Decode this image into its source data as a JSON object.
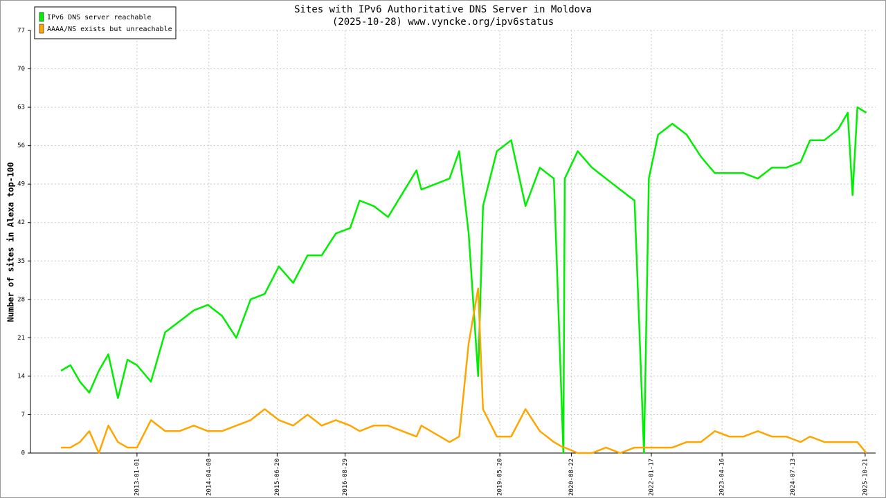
{
  "chart_data": {
    "type": "line",
    "title": "Sites with IPv6 Authoritative DNS Server in Moldova",
    "subtitle": "(2025-10-28) www.vyncke.org/ipv6status",
    "y_label": "Number of sites in Alexa top-100",
    "legend": "top-left",
    "grid": true,
    "x": [
      "2011-09-01",
      "2011-11-01",
      "2012-01-01",
      "2012-03-01",
      "2012-05-01",
      "2012-07-01",
      "2012-09-01",
      "2012-11-01",
      "2013-01-01",
      "2013-04-01",
      "2013-07-01",
      "2013-10-01",
      "2014-01-01",
      "2014-04-01",
      "2014-07-01",
      "2014-10-01",
      "2015-01-01",
      "2015-04-01",
      "2015-07-01",
      "2015-10-01",
      "2016-01-01",
      "2016-04-01",
      "2016-07-01",
      "2016-10-01",
      "2016-12-01",
      "2017-03-01",
      "2017-06-01",
      "2017-12-01",
      "2018-01-01",
      "2018-07-01",
      "2018-09-01",
      "2018-11-01",
      "2019-01-01",
      "2019-02-01",
      "2019-05-01",
      "2019-08-01",
      "2019-11-01",
      "2020-02-01",
      "2020-05-01",
      "2020-07-01",
      "2020-07-10",
      "2020-10-01",
      "2021-01-01",
      "2021-04-01",
      "2021-07-01",
      "2021-10-01",
      "2021-12-01",
      "2022-01-01",
      "2022-03-01",
      "2022-06-01",
      "2022-09-01",
      "2022-12-01",
      "2023-03-01",
      "2023-06-01",
      "2023-09-01",
      "2023-12-01",
      "2024-03-01",
      "2024-06-01",
      "2024-09-01",
      "2024-11-01",
      "2025-02-01",
      "2025-05-01",
      "2025-07-01",
      "2025-08-01",
      "2025-09-01",
      "2025-10-28"
    ],
    "series": [
      {
        "name": "IPv6 DNS server reachable",
        "color": "#00ee00",
        "values": [
          15,
          16,
          13,
          11,
          15,
          18,
          10,
          17,
          16,
          13,
          22,
          24,
          26,
          27,
          25,
          21,
          28,
          29,
          34,
          31,
          36,
          36,
          40,
          41,
          46,
          45,
          43,
          51.5,
          48,
          50,
          55,
          40,
          14,
          45,
          55,
          57,
          45,
          52,
          50,
          0,
          50,
          55,
          52,
          50,
          48,
          46,
          0,
          50,
          58,
          60,
          58,
          54,
          51,
          51,
          51,
          50,
          52,
          52,
          53,
          57,
          57,
          59,
          62,
          47,
          63,
          62
        ]
      },
      {
        "name": "AAAA/NS exists but unreachable",
        "color": "#ffa500",
        "values": [
          1,
          1,
          2,
          4,
          0,
          5,
          2,
          1,
          1,
          6,
          4,
          4,
          5,
          4,
          4,
          5,
          6,
          8,
          6,
          5,
          7,
          5,
          6,
          5,
          4,
          5,
          5,
          3,
          5,
          2,
          3,
          20,
          30,
          8,
          3,
          3,
          8,
          4,
          2,
          1,
          1,
          0,
          0,
          1,
          0,
          1,
          1,
          1,
          1,
          1,
          2,
          2,
          4,
          3,
          3,
          4,
          3,
          3,
          2,
          3,
          2,
          2,
          2,
          2,
          2,
          0
        ]
      }
    ],
    "xlim": [
      "2011-02-17",
      "2025-12-27"
    ],
    "xticks": [
      "2013-01-01",
      "2014-04-08",
      "2015-06-20",
      "2016-08-29",
      "2019-05-20",
      "2020-08-22",
      "2022-01-17",
      "2023-04-16",
      "2024-07-13",
      "2025-10-21"
    ],
    "ylim": [
      0,
      77
    ],
    "yticks": [
      0,
      7,
      14,
      21,
      28,
      35,
      42,
      49,
      56,
      63,
      70,
      77
    ]
  }
}
